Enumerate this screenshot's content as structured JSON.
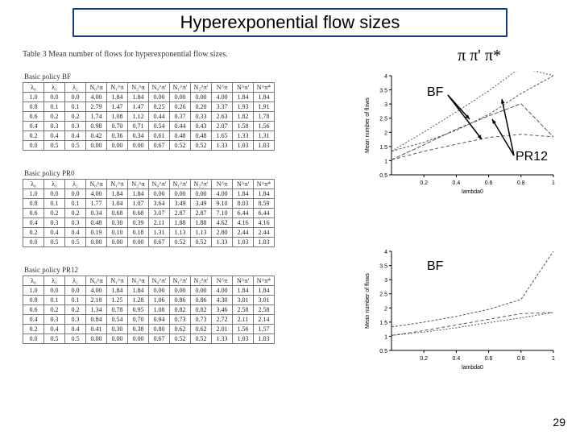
{
  "title": "Hyperexponential flow sizes",
  "legend_symbols": "π   π'  π*",
  "caption": "Table 3   Mean number of flows for hyperexponential flow sizes.",
  "subcaptions": {
    "bf": "Basic policy BF",
    "pr0": "Basic policy PR0",
    "pr12": "Basic policy PR12"
  },
  "page_num": "29",
  "headers": [
    "λ₀",
    "λ₁",
    "λ₂",
    "N₀^π",
    "N₁^π",
    "N₂^π",
    "N₀^π'",
    "N₁^π'",
    "N₂^π'",
    "N^π",
    "N^π'",
    "N^π*"
  ],
  "tables": {
    "bf": [
      [
        "1.0",
        "0.0",
        "0.0",
        "4.00",
        "1.84",
        "1.84",
        "0.00",
        "0.00",
        "0.00",
        "4.00",
        "1.84",
        "1.84"
      ],
      [
        "0.8",
        "0.1",
        "0.1",
        "2.79",
        "1.47",
        "1.47",
        "0.25",
        "0.26",
        "0.20",
        "3.37",
        "1.93",
        "1.91"
      ],
      [
        "0.6",
        "0.2",
        "0.2",
        "1.74",
        "1.08",
        "1.12",
        "0.44",
        "0.37",
        "0.33",
        "2.63",
        "1.82",
        "1.78"
      ],
      [
        "0.4",
        "0.3",
        "0.3",
        "0.98",
        "0.70",
        "0.71",
        "0.54",
        "0.44",
        "0.43",
        "2.07",
        "1.58",
        "1.56"
      ],
      [
        "0.2",
        "0.4",
        "0.4",
        "0.42",
        "0.36",
        "0.34",
        "0.61",
        "0.48",
        "0.48",
        "1.65",
        "1.33",
        "1.31"
      ],
      [
        "0.0",
        "0.5",
        "0.5",
        "0.00",
        "0.00",
        "0.00",
        "0.67",
        "0.52",
        "0.52",
        "1.33",
        "1.03",
        "1.03"
      ]
    ],
    "pr0": [
      [
        "1.0",
        "0.0",
        "0.0",
        "4.00",
        "1.84",
        "1.84",
        "0.00",
        "0.00",
        "0.00",
        "4.00",
        "1.84",
        "1.84"
      ],
      [
        "0.8",
        "0.1",
        "0.1",
        "1.77",
        "1.04",
        "1.07",
        "3.64",
        "3.49",
        "3.49",
        "9.10",
        "8.03",
        "8.59"
      ],
      [
        "0.6",
        "0.2",
        "0.2",
        "0.34",
        "0.68",
        "0.68",
        "3.07",
        "2.87",
        "2.87",
        "7.10",
        "6.44",
        "6.44"
      ],
      [
        "0.4",
        "0.3",
        "0.3",
        "0.48",
        "0.30",
        "0.39",
        "2.11",
        "1.88",
        "1.88",
        "4.62",
        "4.16",
        "4.16"
      ],
      [
        "0.2",
        "0.4",
        "0.4",
        "0.19",
        "0.10",
        "0.18",
        "1.31",
        "1.13",
        "1.13",
        "2.80",
        "2.44",
        "2.44"
      ],
      [
        "0.0",
        "0.5",
        "0.5",
        "0.00",
        "0.00",
        "0.00",
        "0.67",
        "0.52",
        "0.52",
        "1.33",
        "1.03",
        "1.03"
      ]
    ],
    "pr12": [
      [
        "1.0",
        "0.0",
        "0.0",
        "4.00",
        "1.84",
        "1.84",
        "0.00",
        "0.00",
        "0.00",
        "4.00",
        "1.84",
        "1.84"
      ],
      [
        "0.8",
        "0.1",
        "0.1",
        "2.18",
        "1.25",
        "1.28",
        "1.06",
        "0.86",
        "0.86",
        "4.30",
        "3.01",
        "3.01"
      ],
      [
        "0.6",
        "0.2",
        "0.2",
        "1.34",
        "0.78",
        "0.95",
        "1.08",
        "0.82",
        "0.82",
        "3.46",
        "2.58",
        "2.58"
      ],
      [
        "0.4",
        "0.3",
        "0.3",
        "0.84",
        "0.54",
        "0.70",
        "0.94",
        "0.73",
        "0.73",
        "2.72",
        "2.11",
        "2.14"
      ],
      [
        "0.2",
        "0.4",
        "0.4",
        "0.41",
        "0.30",
        "0.38",
        "0.80",
        "0.62",
        "0.62",
        "2.01",
        "1.56",
        "1.57"
      ],
      [
        "0.0",
        "0.5",
        "0.5",
        "0.00",
        "0.00",
        "0.00",
        "0.67",
        "0.52",
        "0.52",
        "1.33",
        "1.03",
        "1.03"
      ]
    ]
  },
  "annot": {
    "bf1": "BF",
    "pr12": "PR12",
    "bf2": "BF"
  },
  "chart": {
    "xticks": [
      0.2,
      0.4,
      0.6,
      0.8,
      1.0
    ],
    "yticks": [
      0.5,
      1,
      1.5,
      2,
      2.5,
      3,
      3.5,
      4
    ],
    "xlabel": "lambda0",
    "ylabel": "Mean number of flows",
    "axis_fontsize": 7,
    "label_fontsize": 7,
    "line_color": "#555555",
    "grid_color": "#000000",
    "background": "#ffffff",
    "arrow_color": "#000000"
  },
  "chart1_series": {
    "bf": [
      [
        0.0,
        1.33
      ],
      [
        0.2,
        1.65
      ],
      [
        0.4,
        2.07
      ],
      [
        0.6,
        2.63
      ],
      [
        0.8,
        3.37
      ],
      [
        1.0,
        4.0
      ]
    ],
    "bf2": [
      [
        0.0,
        1.03
      ],
      [
        0.2,
        1.33
      ],
      [
        0.4,
        1.58
      ],
      [
        0.6,
        1.82
      ],
      [
        0.8,
        1.93
      ],
      [
        1.0,
        1.84
      ]
    ],
    "pr12": [
      [
        0.0,
        1.33
      ],
      [
        0.2,
        2.01
      ],
      [
        0.4,
        2.72
      ],
      [
        0.6,
        3.46
      ],
      [
        0.8,
        4.3
      ],
      [
        1.0,
        4.0
      ]
    ],
    "pr12b": [
      [
        0.0,
        1.03
      ],
      [
        0.2,
        1.56
      ],
      [
        0.4,
        2.11
      ],
      [
        0.6,
        2.58
      ],
      [
        0.8,
        3.01
      ],
      [
        1.0,
        1.84
      ]
    ]
  },
  "chart2_series": {
    "a": [
      [
        0.0,
        1.33
      ],
      [
        0.2,
        1.5
      ],
      [
        0.4,
        1.7
      ],
      [
        0.6,
        1.95
      ],
      [
        0.8,
        2.3
      ],
      [
        1.0,
        4.0
      ]
    ],
    "b": [
      [
        0.0,
        1.03
      ],
      [
        0.2,
        1.2
      ],
      [
        0.4,
        1.4
      ],
      [
        0.6,
        1.6
      ],
      [
        0.8,
        1.8
      ],
      [
        1.0,
        1.84
      ]
    ],
    "c": [
      [
        0.0,
        1.03
      ],
      [
        0.2,
        1.15
      ],
      [
        0.4,
        1.3
      ],
      [
        0.6,
        1.48
      ],
      [
        0.8,
        1.65
      ],
      [
        1.0,
        1.84
      ]
    ]
  }
}
